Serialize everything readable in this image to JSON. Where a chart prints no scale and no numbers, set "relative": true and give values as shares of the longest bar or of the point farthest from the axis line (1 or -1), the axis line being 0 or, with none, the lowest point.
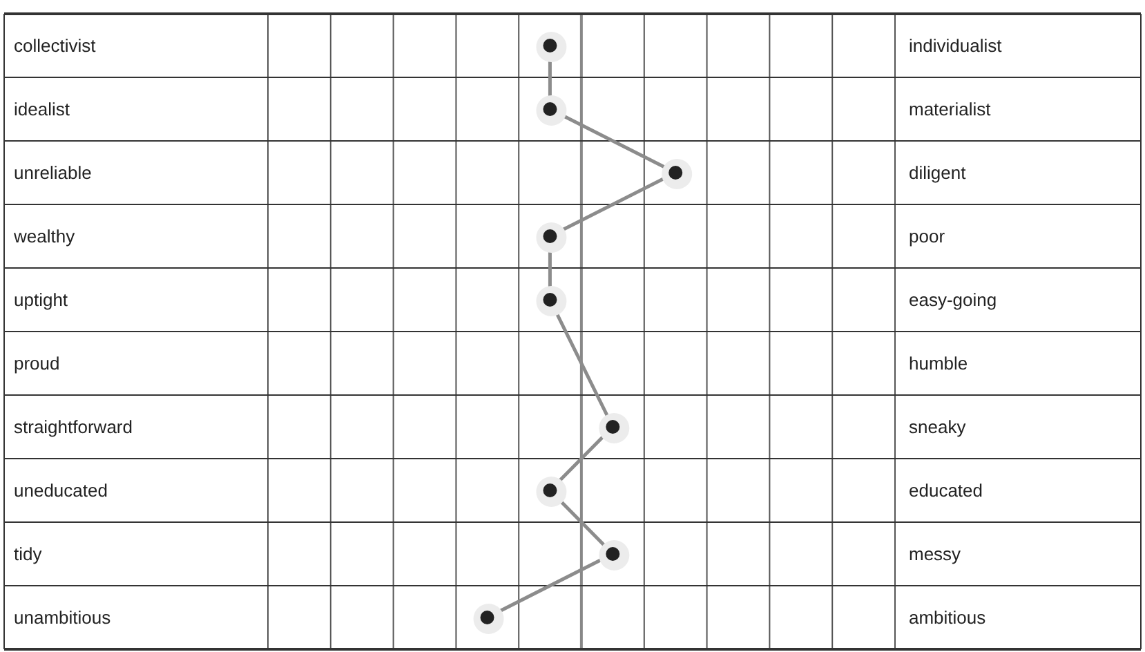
{
  "chart_data": {
    "type": "line",
    "orientation": "horizontal",
    "relative": true,
    "grid": true,
    "ref_lines": [
      {
        "axis": "x",
        "value": 0.769,
        "color": "#888888"
      }
    ],
    "marker": "circle",
    "line_style": "solid",
    "categories": [
      "collectivist",
      "idealist",
      "unreliable",
      "wealthy",
      "uptight",
      "proud",
      "straightforward",
      "uneducated",
      "tidy",
      "unambitious"
    ],
    "y2_categories": [
      "individualist",
      "materialist",
      "diligent",
      "poor",
      "easy-going",
      "humble",
      "sneaky",
      "educated",
      "messy",
      "ambitious"
    ],
    "series": [
      {
        "color": "#8c8c8c",
        "values": [
          0.692,
          0.692,
          1,
          0.692,
          0.692,
          null,
          0.846,
          0.692,
          0.846,
          0.538
        ]
      }
    ]
  }
}
